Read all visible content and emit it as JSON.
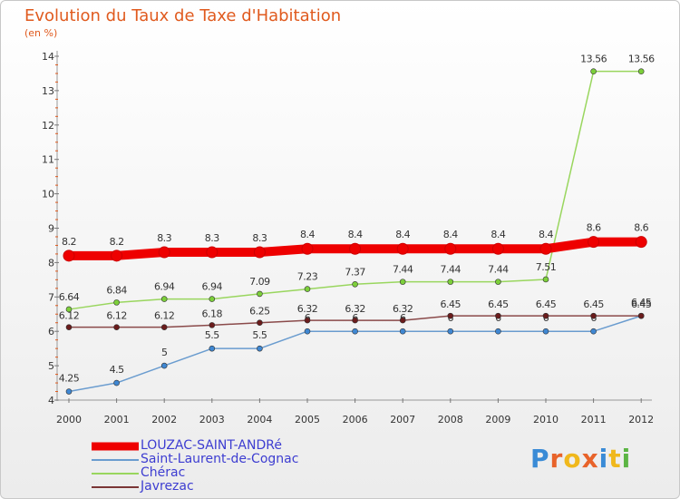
{
  "title": "Evolution du Taux de Taxe d'Habitation",
  "subtitle": "(en %)",
  "chart_data": {
    "type": "line",
    "title": "Evolution du Taux de Taxe d'Habitation",
    "ylabel": "(en %)",
    "xlabel": "",
    "x": [
      "2000",
      "2001",
      "2002",
      "2003",
      "2004",
      "2005",
      "2006",
      "2007",
      "2008",
      "2009",
      "2010",
      "2011",
      "2012"
    ],
    "ylim": [
      4,
      14
    ],
    "yticks": [
      4,
      5,
      6,
      7,
      8,
      9,
      10,
      11,
      12,
      13,
      14
    ],
    "grid": false,
    "legend_position": "bottom-left",
    "series": [
      {
        "name": "LOUZAC-SAINT-ANDRé",
        "color": "#ee0000",
        "values": [
          8.2,
          8.2,
          8.3,
          8.3,
          8.3,
          8.4,
          8.4,
          8.4,
          8.4,
          8.4,
          8.4,
          8.6,
          8.6
        ],
        "labels": [
          "8.2",
          "8.2",
          "8.3",
          "8.3",
          "8.3",
          "8.4",
          "8.4",
          "8.4",
          "8.4",
          "8.4",
          "8.4",
          "8.6",
          "8.6"
        ]
      },
      {
        "name": "Saint-Laurent-de-Cognac",
        "color": "#6a9ccf",
        "values": [
          4.25,
          4.5,
          5,
          5.5,
          5.5,
          6,
          6,
          6,
          6,
          6,
          6,
          6,
          6.45
        ],
        "labels": [
          "4.25",
          "4.5",
          "5",
          "5.5",
          "5.5",
          "6",
          "6",
          "6",
          "6",
          "6",
          "6",
          "6",
          "6.45"
        ]
      },
      {
        "name": "Chérac",
        "color": "#99d65e",
        "values": [
          6.64,
          6.84,
          6.94,
          6.94,
          7.09,
          7.23,
          7.37,
          7.44,
          7.44,
          7.44,
          7.51,
          13.56,
          13.56
        ],
        "labels": [
          "6.64",
          "6.84",
          "6.94",
          "6.94",
          "7.09",
          "7.23",
          "7.37",
          "7.44",
          "7.44",
          "7.44",
          "7.51",
          "13.56",
          "13.56"
        ]
      },
      {
        "name": "Javrezac",
        "color": "#7a3535",
        "values": [
          6.12,
          6.12,
          6.12,
          6.18,
          6.25,
          6.32,
          6.32,
          6.32,
          6.45,
          6.45,
          6.45,
          6.45,
          6.45
        ],
        "labels": [
          "6.12",
          "6.12",
          "6.12",
          "6.18",
          "6.25",
          "6.32",
          "6.32",
          "6.32",
          "6.45",
          "6.45",
          "6.45",
          "6.45",
          "6.45"
        ]
      }
    ]
  },
  "logo": {
    "text": "Proxiti",
    "letter_colors": [
      "#3a8bd6",
      "#e8632a",
      "#f0b81c",
      "#e8632a",
      "#3a8bd6",
      "#f0b81c",
      "#5cb544"
    ]
  }
}
